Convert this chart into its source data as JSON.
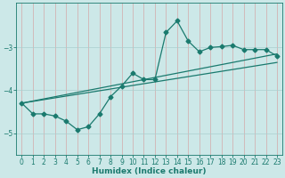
{
  "xlabel": "Humidex (Indice chaleur)",
  "background_color": "#cce8e8",
  "line_color": "#1a7a6e",
  "grid_color": "#aacfcf",
  "x_data": [
    0,
    1,
    2,
    3,
    4,
    5,
    6,
    7,
    8,
    9,
    10,
    11,
    12,
    13,
    14,
    15,
    16,
    17,
    18,
    19,
    20,
    21,
    22,
    23
  ],
  "main_y": [
    -4.3,
    -4.55,
    -4.55,
    -4.6,
    -4.72,
    -4.92,
    -4.85,
    -4.55,
    -4.15,
    -3.9,
    -3.6,
    -3.75,
    -3.75,
    -2.65,
    -2.38,
    -2.85,
    -3.1,
    -3.0,
    -2.98,
    -2.95,
    -3.05,
    -3.05,
    -3.05,
    -3.2
  ],
  "upper_line_x": [
    0,
    23
  ],
  "upper_line_y": [
    -4.3,
    -3.15
  ],
  "lower_line_x": [
    0,
    23
  ],
  "lower_line_y": [
    -4.3,
    -3.35
  ],
  "ylim": [
    -5.5,
    -1.95
  ],
  "xlim": [
    -0.5,
    23.5
  ],
  "yticks": [
    -5,
    -4,
    -3
  ],
  "xticks": [
    0,
    1,
    2,
    3,
    4,
    5,
    6,
    7,
    8,
    9,
    10,
    11,
    12,
    13,
    14,
    15,
    16,
    17,
    18,
    19,
    20,
    21,
    22,
    23
  ],
  "xlabel_fontsize": 6.5,
  "tick_fontsize": 5.5,
  "lw": 0.9,
  "markersize": 2.5
}
